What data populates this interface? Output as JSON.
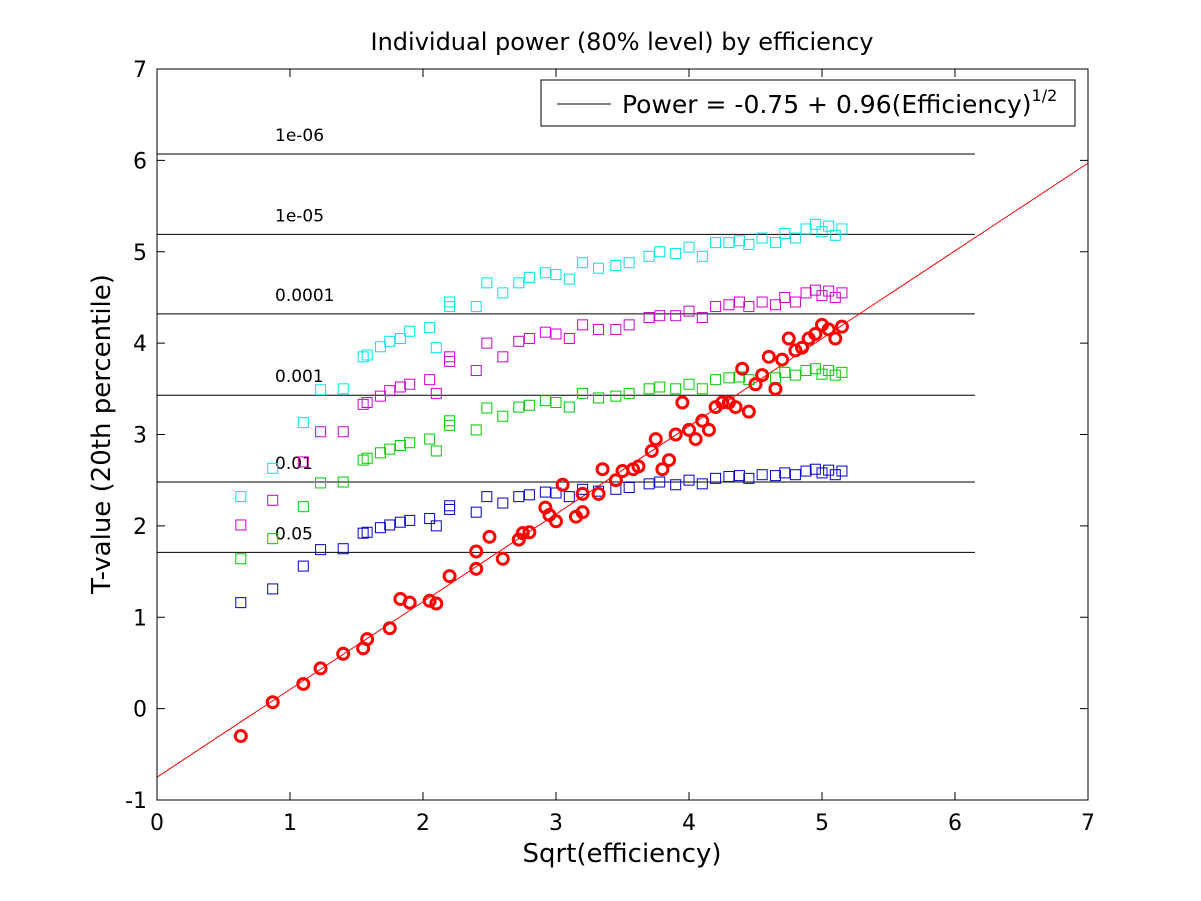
{
  "chart_data": {
    "type": "scatter",
    "title": "Individual power (80% level) by efficiency",
    "xlabel": "Sqrt(efficiency)",
    "ylabel": "T-value (20th percentile)",
    "xlim": [
      0,
      7
    ],
    "ylim": [
      -1,
      7
    ],
    "xticks": [
      "0",
      "1",
      "2",
      "3",
      "4",
      "5",
      "6",
      "7"
    ],
    "yticks": [
      "-1",
      "0",
      "1",
      "2",
      "3",
      "4",
      "5",
      "6",
      "7"
    ],
    "grid": false,
    "legend": {
      "position": "top-right",
      "text": "Power = -0.75 + 0.96(Efficiency)",
      "superscript": "1/2"
    },
    "fit_line": {
      "intercept": -0.75,
      "slope": 0.96,
      "x_range": [
        0,
        7
      ],
      "color": "#ff0000"
    },
    "thresholds": [
      {
        "label": "1e-06",
        "y": 6.07,
        "x_range": [
          0,
          6.15
        ]
      },
      {
        "label": "1e-05",
        "y": 5.19,
        "x_range": [
          0,
          6.15
        ]
      },
      {
        "label": "0.0001",
        "y": 4.32,
        "x_range": [
          0,
          6.15
        ]
      },
      {
        "label": "0.001",
        "y": 3.43,
        "x_range": [
          0,
          6.15
        ]
      },
      {
        "label": "0.01",
        "y": 2.48,
        "x_range": [
          0,
          6.15
        ]
      },
      {
        "label": "0.05",
        "y": 1.71,
        "x_range": [
          0,
          6.15
        ]
      }
    ],
    "series": [
      {
        "marker": "square",
        "color": "#00e5e5",
        "x": [
          0.63,
          0.87,
          1.1,
          1.23,
          1.4,
          1.55,
          1.58,
          1.68,
          1.75,
          1.83,
          1.9,
          2.05,
          2.1,
          2.2,
          2.2,
          2.4,
          2.48,
          2.6,
          2.72,
          2.8,
          2.92,
          3.0,
          3.1,
          3.2,
          3.32,
          3.45,
          3.55,
          3.7,
          3.78,
          3.9,
          4.0,
          4.1,
          4.2,
          4.3,
          4.38,
          4.45,
          4.55,
          4.65,
          4.72,
          4.8,
          4.88,
          4.95,
          5.0,
          5.05,
          5.1,
          5.15
        ],
        "y": [
          2.32,
          2.63,
          3.13,
          3.49,
          3.5,
          3.85,
          3.87,
          3.96,
          4.02,
          4.05,
          4.13,
          4.17,
          3.95,
          4.45,
          4.4,
          4.4,
          4.66,
          4.55,
          4.66,
          4.72,
          4.77,
          4.75,
          4.7,
          4.88,
          4.82,
          4.85,
          4.88,
          4.95,
          5.0,
          4.98,
          5.05,
          4.95,
          5.1,
          5.1,
          5.12,
          5.08,
          5.15,
          5.1,
          5.2,
          5.15,
          5.25,
          5.3,
          5.22,
          5.28,
          5.18,
          5.25
        ]
      },
      {
        "marker": "square",
        "color": "#cc00cc",
        "x": [
          0.63,
          0.87,
          1.1,
          1.23,
          1.4,
          1.55,
          1.58,
          1.68,
          1.75,
          1.83,
          1.9,
          2.05,
          2.1,
          2.2,
          2.2,
          2.4,
          2.48,
          2.6,
          2.72,
          2.8,
          2.92,
          3.0,
          3.1,
          3.2,
          3.32,
          3.45,
          3.55,
          3.7,
          3.78,
          3.9,
          4.0,
          4.1,
          4.2,
          4.3,
          4.38,
          4.45,
          4.55,
          4.65,
          4.72,
          4.8,
          4.88,
          4.95,
          5.0,
          5.05,
          5.1,
          5.15
        ],
        "y": [
          2.01,
          2.28,
          2.7,
          3.03,
          3.03,
          3.33,
          3.35,
          3.42,
          3.48,
          3.52,
          3.55,
          3.6,
          3.45,
          3.85,
          3.8,
          3.7,
          4.0,
          3.85,
          4.02,
          4.05,
          4.12,
          4.1,
          4.05,
          4.2,
          4.15,
          4.15,
          4.2,
          4.28,
          4.3,
          4.3,
          4.35,
          4.28,
          4.4,
          4.42,
          4.45,
          4.4,
          4.45,
          4.42,
          4.5,
          4.45,
          4.55,
          4.58,
          4.52,
          4.57,
          4.5,
          4.55
        ]
      },
      {
        "marker": "square",
        "color": "#00cc00",
        "x": [
          0.63,
          0.87,
          1.1,
          1.23,
          1.4,
          1.55,
          1.58,
          1.68,
          1.75,
          1.83,
          1.9,
          2.05,
          2.1,
          2.2,
          2.2,
          2.4,
          2.48,
          2.6,
          2.72,
          2.8,
          2.92,
          3.0,
          3.1,
          3.2,
          3.32,
          3.45,
          3.55,
          3.7,
          3.78,
          3.9,
          4.0,
          4.1,
          4.2,
          4.3,
          4.38,
          4.45,
          4.55,
          4.65,
          4.72,
          4.8,
          4.88,
          4.95,
          5.0,
          5.05,
          5.1,
          5.15
        ],
        "y": [
          1.64,
          1.86,
          2.21,
          2.47,
          2.48,
          2.72,
          2.74,
          2.8,
          2.84,
          2.88,
          2.91,
          2.95,
          2.82,
          3.15,
          3.1,
          3.05,
          3.29,
          3.2,
          3.3,
          3.32,
          3.37,
          3.35,
          3.3,
          3.45,
          3.4,
          3.42,
          3.45,
          3.5,
          3.52,
          3.5,
          3.55,
          3.5,
          3.6,
          3.62,
          3.63,
          3.6,
          3.65,
          3.62,
          3.68,
          3.65,
          3.7,
          3.72,
          3.66,
          3.7,
          3.65,
          3.68
        ]
      },
      {
        "marker": "square",
        "color": "#0000cc",
        "x": [
          0.63,
          0.87,
          1.1,
          1.23,
          1.4,
          1.55,
          1.58,
          1.68,
          1.75,
          1.83,
          1.9,
          2.05,
          2.1,
          2.2,
          2.2,
          2.4,
          2.48,
          2.6,
          2.72,
          2.8,
          2.92,
          3.0,
          3.1,
          3.2,
          3.32,
          3.45,
          3.55,
          3.7,
          3.78,
          3.9,
          4.0,
          4.1,
          4.2,
          4.3,
          4.38,
          4.45,
          4.55,
          4.65,
          4.72,
          4.8,
          4.88,
          4.95,
          5.0,
          5.05,
          5.1,
          5.15
        ],
        "y": [
          1.16,
          1.31,
          1.56,
          1.74,
          1.75,
          1.92,
          1.93,
          1.98,
          2.01,
          2.04,
          2.06,
          2.08,
          2.0,
          2.22,
          2.18,
          2.15,
          2.32,
          2.25,
          2.32,
          2.34,
          2.37,
          2.36,
          2.32,
          2.4,
          2.38,
          2.4,
          2.42,
          2.46,
          2.48,
          2.45,
          2.5,
          2.46,
          2.52,
          2.54,
          2.55,
          2.52,
          2.56,
          2.55,
          2.58,
          2.56,
          2.6,
          2.62,
          2.58,
          2.61,
          2.56,
          2.6
        ]
      },
      {
        "marker": "circle",
        "color": "#ff0000",
        "x": [
          0.63,
          0.87,
          1.1,
          1.23,
          1.4,
          1.55,
          1.58,
          1.75,
          1.83,
          1.9,
          2.05,
          2.1,
          2.2,
          2.4,
          2.4,
          2.5,
          2.6,
          2.72,
          2.75,
          2.8,
          2.92,
          2.95,
          3.0,
          3.05,
          3.15,
          3.2,
          3.2,
          3.32,
          3.35,
          3.45,
          3.5,
          3.58,
          3.62,
          3.72,
          3.75,
          3.8,
          3.85,
          3.9,
          3.95,
          4.0,
          4.05,
          4.1,
          4.15,
          4.2,
          4.25,
          4.3,
          4.35,
          4.4,
          4.45,
          4.5,
          4.55,
          4.6,
          4.65,
          4.7,
          4.75,
          4.8,
          4.85,
          4.9,
          4.95,
          5.0,
          5.05,
          5.1,
          5.15
        ],
        "y": [
          -0.3,
          0.07,
          0.27,
          0.44,
          0.6,
          0.66,
          0.76,
          0.88,
          1.2,
          1.16,
          1.18,
          1.15,
          1.45,
          1.53,
          1.72,
          1.88,
          1.64,
          1.85,
          1.92,
          1.93,
          2.2,
          2.12,
          2.05,
          2.45,
          2.1,
          2.35,
          2.15,
          2.35,
          2.62,
          2.5,
          2.6,
          2.62,
          2.65,
          2.82,
          2.95,
          2.62,
          2.72,
          3.0,
          3.35,
          3.05,
          2.95,
          3.15,
          3.05,
          3.3,
          3.35,
          3.35,
          3.3,
          3.72,
          3.25,
          3.55,
          3.65,
          3.85,
          3.5,
          3.82,
          4.05,
          3.92,
          3.95,
          4.05,
          4.1,
          4.2,
          4.15,
          4.05,
          4.18
        ]
      }
    ]
  }
}
